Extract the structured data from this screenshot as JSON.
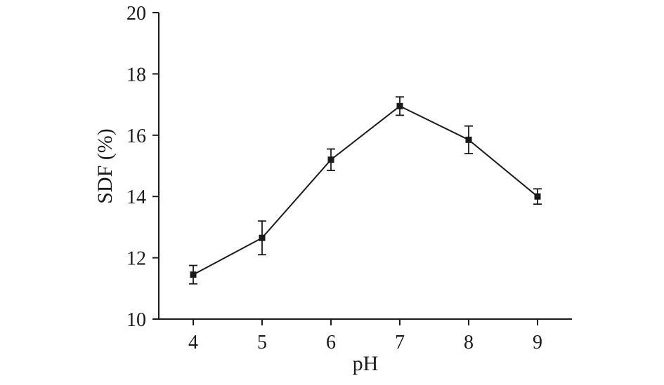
{
  "chart_data": {
    "type": "line",
    "title": "",
    "xlabel": "pH",
    "ylabel": "SDF (%)",
    "x": [
      4,
      5,
      6,
      7,
      8,
      9
    ],
    "series": [
      {
        "name": "SDF",
        "values": [
          11.45,
          12.65,
          15.2,
          16.95,
          15.85,
          14.0
        ],
        "errors": [
          0.3,
          0.55,
          0.35,
          0.3,
          0.45,
          0.25
        ]
      }
    ],
    "xlim": [
      3.5,
      9.5
    ],
    "ylim": [
      10,
      20
    ],
    "xticks": [
      4,
      5,
      6,
      7,
      8,
      9
    ],
    "yticks": [
      10,
      12,
      14,
      16,
      18,
      20
    ],
    "grid": false,
    "legend": "none",
    "marker": "square",
    "line_color": "#1a1a1a",
    "background_color": "#ffffff"
  }
}
